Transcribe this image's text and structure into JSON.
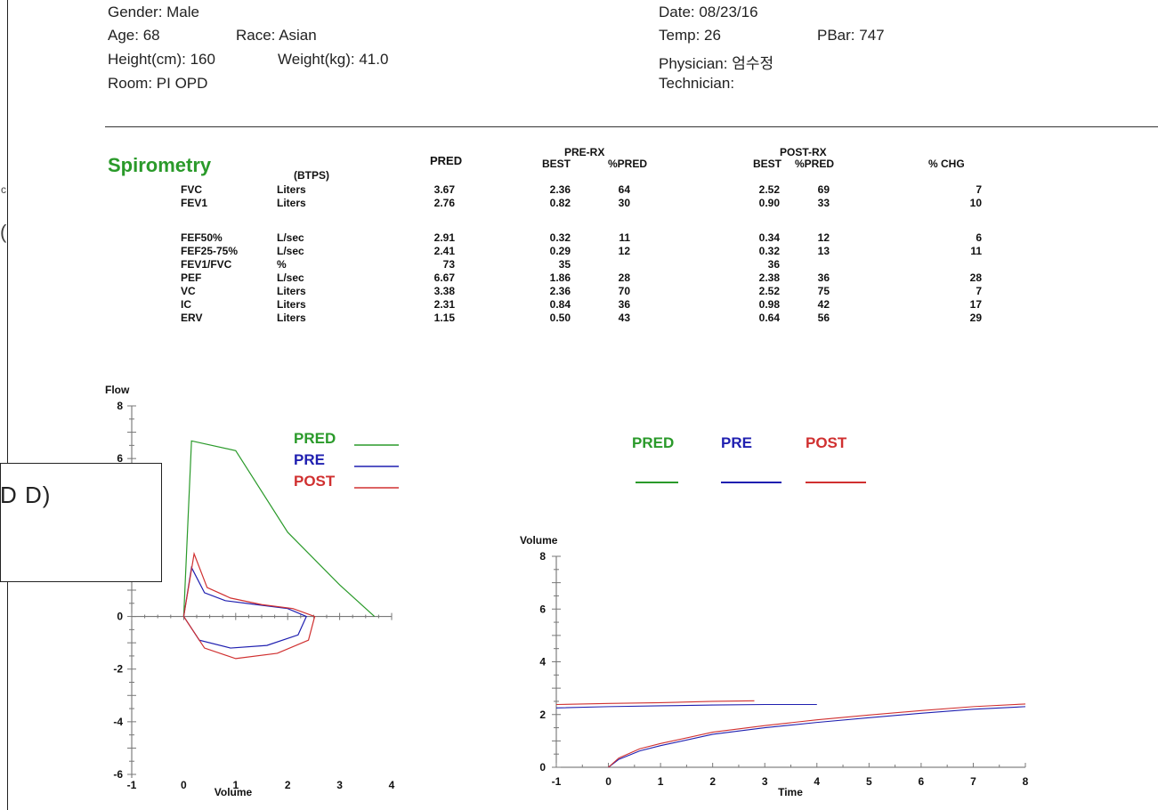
{
  "patient": {
    "gender": "Gender: Male",
    "age": "Age: 68",
    "race": "Race: Asian",
    "height": "Height(cm): 160",
    "weight": "Weight(kg): 41.0",
    "room": "Room: PI OPD",
    "date": "Date: 08/23/16",
    "temp": "Temp: 26",
    "pbar": "PBar: 747",
    "physician": "Physician: 엄수정",
    "technician": "Technician:"
  },
  "spirometry": {
    "title": "Spirometry",
    "btps": "(BTPS)",
    "headers": {
      "pred": "PRED",
      "pre_rx": "PRE-RX",
      "pre_best": "BEST",
      "pre_pct": "%PRED",
      "post_rx": "POST-RX",
      "post_best": "BEST",
      "post_pct": "%PRED",
      "chg": "% CHG"
    },
    "rows": [
      {
        "name": "FVC",
        "unit": "Liters",
        "pred": "3.67",
        "pre": "2.36",
        "pre_pct": "64",
        "post": "2.52",
        "post_pct": "69",
        "chg": "7"
      },
      {
        "name": "FEV1",
        "unit": "Liters",
        "pred": "2.76",
        "pre": "0.82",
        "pre_pct": "30",
        "post": "0.90",
        "post_pct": "33",
        "chg": "10"
      },
      {
        "name": "FEF50%",
        "unit": "L/sec",
        "pred": "2.91",
        "pre": "0.32",
        "pre_pct": "11",
        "post": "0.34",
        "post_pct": "12",
        "chg": "6"
      },
      {
        "name": "FEF25-75%",
        "unit": "L/sec",
        "pred": "2.41",
        "pre": "0.29",
        "pre_pct": "12",
        "post": "0.32",
        "post_pct": "13",
        "chg": "11"
      },
      {
        "name": "FEV1/FVC",
        "unit": "%",
        "pred": "73",
        "pre": "35",
        "pre_pct": "",
        "post": "36",
        "post_pct": "",
        "chg": ""
      },
      {
        "name": "PEF",
        "unit": "L/sec",
        "pred": "6.67",
        "pre": "1.86",
        "pre_pct": "28",
        "post": "2.38",
        "post_pct": "36",
        "chg": "28"
      },
      {
        "name": "VC",
        "unit": "Liters",
        "pred": "3.38",
        "pre": "2.36",
        "pre_pct": "70",
        "post": "2.52",
        "post_pct": "75",
        "chg": "7"
      },
      {
        "name": "IC",
        "unit": "Liters",
        "pred": "2.31",
        "pre": "0.84",
        "pre_pct": "36",
        "post": "0.98",
        "post_pct": "42",
        "chg": "17"
      },
      {
        "name": "ERV",
        "unit": "Liters",
        "pred": "1.15",
        "pre": "0.50",
        "pre_pct": "43",
        "post": "0.64",
        "post_pct": "56",
        "chg": "29"
      }
    ]
  },
  "overlay": {
    "text": "D D)"
  },
  "chart_data": [
    {
      "type": "line",
      "ylabel": "Flow",
      "xlabel": "Volume",
      "xlim": [
        -1,
        4
      ],
      "ylim": [
        -6,
        8
      ],
      "xticks": [
        "-1",
        "0",
        "1",
        "2",
        "3",
        "4"
      ],
      "yticks": [
        "8",
        "6",
        "0",
        "-2",
        "-4",
        "-6"
      ],
      "legend": [
        {
          "label": "PRED",
          "color": "#2a9a2a"
        },
        {
          "label": "PRE",
          "color": "#1f1fb0"
        },
        {
          "label": "POST",
          "color": "#d03030"
        }
      ],
      "series": [
        {
          "name": "PRED",
          "color": "#2a9a2a",
          "points": [
            [
              0.0,
              0.0
            ],
            [
              0.15,
              6.67
            ],
            [
              1.0,
              6.3
            ],
            [
              2.0,
              3.2
            ],
            [
              3.0,
              1.2
            ],
            [
              3.67,
              0.0
            ]
          ]
        },
        {
          "name": "PRE",
          "color": "#1f1fb0",
          "points": [
            [
              0.0,
              0.0
            ],
            [
              0.15,
              1.86
            ],
            [
              0.4,
              0.9
            ],
            [
              0.8,
              0.6
            ],
            [
              1.4,
              0.45
            ],
            [
              2.0,
              0.3
            ],
            [
              2.36,
              0.0
            ],
            [
              2.2,
              -0.7
            ],
            [
              1.6,
              -1.1
            ],
            [
              0.9,
              -1.2
            ],
            [
              0.3,
              -0.9
            ],
            [
              0.0,
              0.0
            ]
          ]
        },
        {
          "name": "POST",
          "color": "#d03030",
          "points": [
            [
              0.0,
              0.0
            ],
            [
              0.2,
              2.38
            ],
            [
              0.45,
              1.1
            ],
            [
              0.9,
              0.7
            ],
            [
              1.5,
              0.45
            ],
            [
              2.1,
              0.3
            ],
            [
              2.52,
              0.0
            ],
            [
              2.4,
              -0.9
            ],
            [
              1.8,
              -1.4
            ],
            [
              1.0,
              -1.6
            ],
            [
              0.4,
              -1.2
            ],
            [
              0.0,
              0.0
            ]
          ]
        }
      ]
    },
    {
      "type": "line",
      "ylabel": "Volume",
      "xlabel": "Time",
      "xlim": [
        -1,
        8
      ],
      "ylim": [
        0,
        8
      ],
      "xticks": [
        "-1",
        "0",
        "1",
        "2",
        "3",
        "4",
        "5",
        "6",
        "7",
        "8"
      ],
      "yticks": [
        "8",
        "6",
        "4",
        "2",
        "0"
      ],
      "legend": [
        {
          "label": "PRED",
          "color": "#2a9a2a"
        },
        {
          "label": "PRE",
          "color": "#1f1fb0"
        },
        {
          "label": "POST",
          "color": "#d03030"
        }
      ],
      "series": [
        {
          "name": "PRE",
          "color": "#1f1fb0",
          "points": [
            [
              0.0,
              0.0
            ],
            [
              0.2,
              0.3
            ],
            [
              0.6,
              0.62
            ],
            [
              1.0,
              0.82
            ],
            [
              2.0,
              1.25
            ],
            [
              3.0,
              1.5
            ],
            [
              4.0,
              1.7
            ],
            [
              5.0,
              1.88
            ],
            [
              6.0,
              2.05
            ],
            [
              7.0,
              2.2
            ],
            [
              8.0,
              2.3
            ]
          ]
        },
        {
          "name": "POST",
          "color": "#d03030",
          "points": [
            [
              0.0,
              0.0
            ],
            [
              0.2,
              0.35
            ],
            [
              0.6,
              0.7
            ],
            [
              1.0,
              0.9
            ],
            [
              2.0,
              1.33
            ],
            [
              3.0,
              1.58
            ],
            [
              4.0,
              1.8
            ],
            [
              5.0,
              1.98
            ],
            [
              6.0,
              2.15
            ],
            [
              7.0,
              2.3
            ],
            [
              8.0,
              2.4
            ]
          ]
        },
        {
          "name": "PRE-baseline",
          "color": "#1f1fb0",
          "points": [
            [
              -1.0,
              2.25
            ],
            [
              0.0,
              2.3
            ],
            [
              1.0,
              2.33
            ],
            [
              2.0,
              2.36
            ],
            [
              3.0,
              2.38
            ],
            [
              4.0,
              2.38
            ]
          ]
        },
        {
          "name": "POST-baseline",
          "color": "#d03030",
          "points": [
            [
              -1.0,
              2.38
            ],
            [
              0.0,
              2.42
            ],
            [
              1.0,
              2.45
            ],
            [
              2.0,
              2.5
            ],
            [
              2.8,
              2.52
            ]
          ]
        }
      ]
    }
  ]
}
